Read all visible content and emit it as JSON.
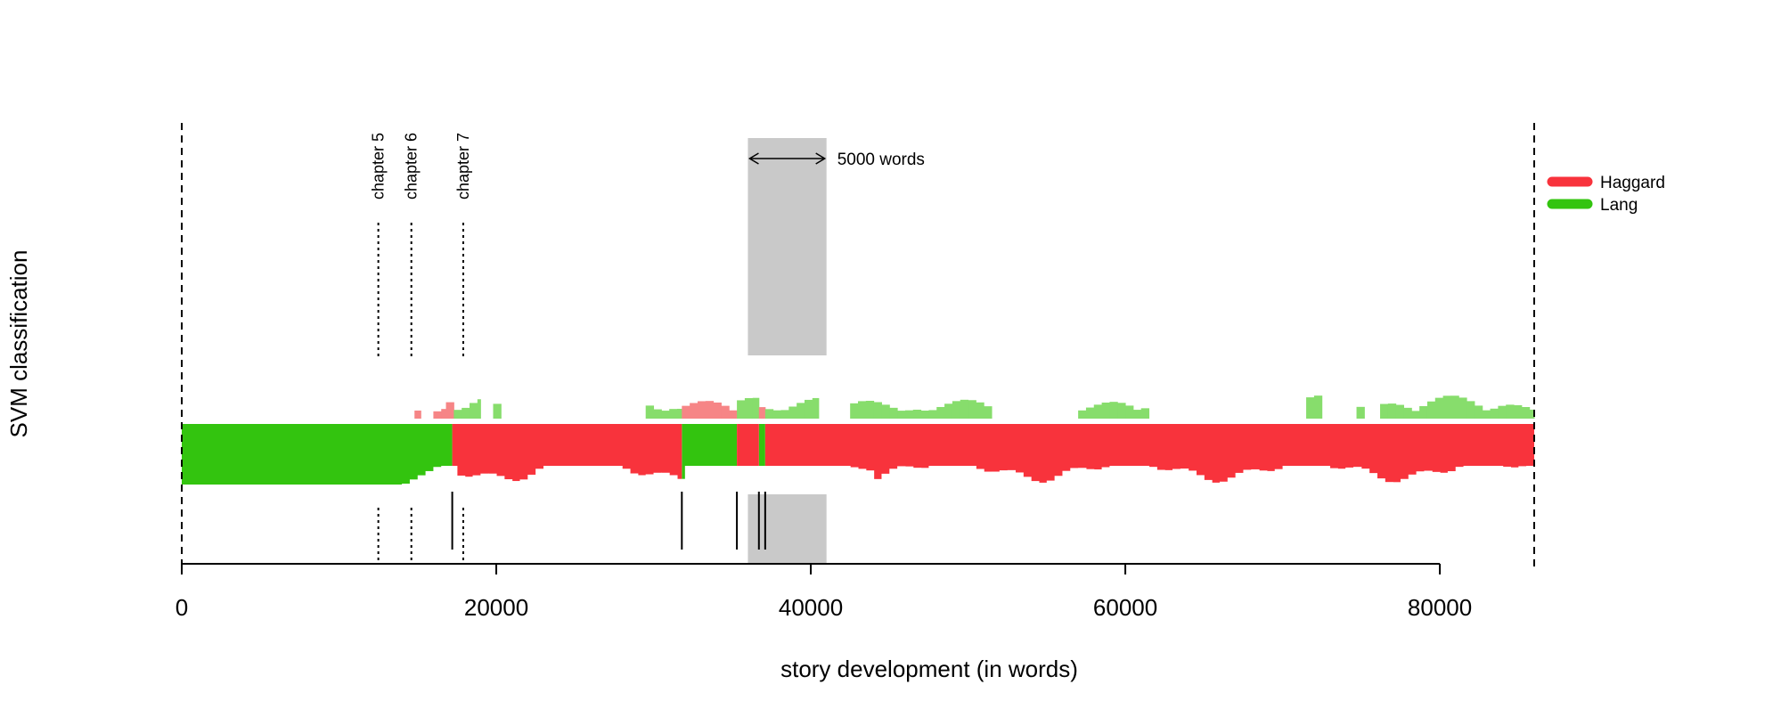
{
  "chart_data": {
    "type": "area",
    "title": "",
    "xlabel": "story development (in words)",
    "ylabel": "SVM classification",
    "xlim": [
      0,
      86000
    ],
    "x_ticks": [
      0,
      20000,
      40000,
      60000,
      80000
    ],
    "x_tick_labels": [
      "0",
      "20000",
      "40000",
      "60000",
      "80000"
    ],
    "text_end": 86000,
    "legend": {
      "placement": "right",
      "entries": [
        {
          "label": "Haggard",
          "color": "#f8333c"
        },
        {
          "label": "Lang",
          "color": "#33c40f"
        }
      ]
    },
    "colors": {
      "haggard": "#f8333c",
      "lang": "#33c40f",
      "haggard_light": "#f68586",
      "lang_light": "#87dd6c",
      "window": "#c9c9c9"
    },
    "window_box": {
      "x_start": 36000,
      "x_end": 41000,
      "label": "5000 words"
    },
    "chapters": [
      {
        "label": "chapter 5",
        "x": 12500
      },
      {
        "label": "chapter 6",
        "x": 14600
      },
      {
        "label": "chapter 7",
        "x": 17900
      }
    ],
    "boundaries": [
      17200,
      31800,
      35300,
      36700,
      37100
    ],
    "series": [
      {
        "name": "Lang",
        "segments": [
          {
            "x": [
              0,
              17200
            ],
            "class": "Lang"
          },
          {
            "x": [
              31800,
              35300
            ],
            "class": "Lang"
          },
          {
            "x": [
              36700,
              37100
            ],
            "class": "Lang"
          }
        ]
      },
      {
        "name": "Haggard",
        "segments": [
          {
            "x": [
              17200,
              31800
            ],
            "class": "Haggard"
          },
          {
            "x": [
              35300,
              36700
            ],
            "class": "Haggard"
          },
          {
            "x": [
              37100,
              86000
            ],
            "class": "Haggard"
          }
        ]
      }
    ],
    "secondary_profile": [
      [
        14800,
        15200,
        "H"
      ],
      [
        16000,
        16800,
        "H"
      ],
      [
        16800,
        17300,
        "H"
      ],
      [
        17300,
        19000,
        "L"
      ],
      [
        19800,
        20300,
        "L"
      ],
      [
        29500,
        31800,
        "L"
      ],
      [
        31800,
        35300,
        "H"
      ],
      [
        35300,
        36700,
        "L"
      ],
      [
        36700,
        37100,
        "H"
      ],
      [
        37100,
        40500,
        "L"
      ],
      [
        42500,
        51500,
        "L"
      ],
      [
        57000,
        61500,
        "L"
      ],
      [
        71500,
        72500,
        "L"
      ],
      [
        74700,
        75200,
        "L"
      ],
      [
        76200,
        86000,
        "L"
      ]
    ]
  }
}
